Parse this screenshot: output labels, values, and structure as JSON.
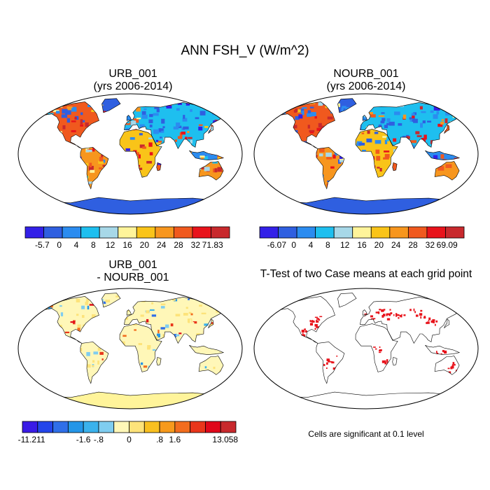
{
  "title": "ANN FSH_V (W/m^2)",
  "panels": [
    {
      "line1": "URB_001",
      "line2": "(yrs 2006-2014)"
    },
    {
      "line1": "NOURB_001",
      "line2": "(yrs 2006-2014)"
    },
    {
      "line1": "URB_001",
      "line2": "- NOURB_001"
    },
    {
      "line1": "T-Test of two Case means at each grid point",
      "note": "Cells are significant at 0.1 level"
    }
  ],
  "colorbars": [
    {
      "labels": [
        "-5.7",
        "0",
        "4",
        "8",
        "12",
        "16",
        "20",
        "24",
        "28",
        "32",
        "71.83"
      ],
      "colors": [
        "#3320e8",
        "#2f5fe0",
        "#2b8cf0",
        "#1ebfef",
        "#a7d8e8",
        "#fff49a",
        "#f9c419",
        "#f7961e",
        "#f0591e",
        "#e8131b",
        "#c8292d"
      ]
    },
    {
      "labels": [
        "-6.07",
        "0",
        "4",
        "8",
        "12",
        "16",
        "20",
        "24",
        "28",
        "32",
        "69.09"
      ],
      "colors": [
        "#3320e8",
        "#2f5fe0",
        "#2b8cf0",
        "#1ebfef",
        "#a7d8e8",
        "#fff49a",
        "#f9c419",
        "#f7961e",
        "#f0591e",
        "#e8131b",
        "#c8292d"
      ]
    },
    {
      "labels": [
        "-11.211",
        "-1.6",
        "-.8",
        "0",
        ".8",
        "1.6",
        "13.058"
      ],
      "colors": [
        "#3a1be6",
        "#2446ea",
        "#2f6fe8",
        "#2496e8",
        "#3bb2ec",
        "#7fcdf0",
        "#fff7b8",
        "#fde37a",
        "#f9c020",
        "#f79a1c",
        "#f26d1e",
        "#e9361b",
        "#e0081a",
        "#c8292d"
      ]
    }
  ],
  "colors": {
    "ocean": "#ffffff",
    "coast": "#000000",
    "antarctica_panels_1_2": "#2f5fe0",
    "antarctica_panel_3": "#fff49a",
    "significant": "#e8131b"
  }
}
